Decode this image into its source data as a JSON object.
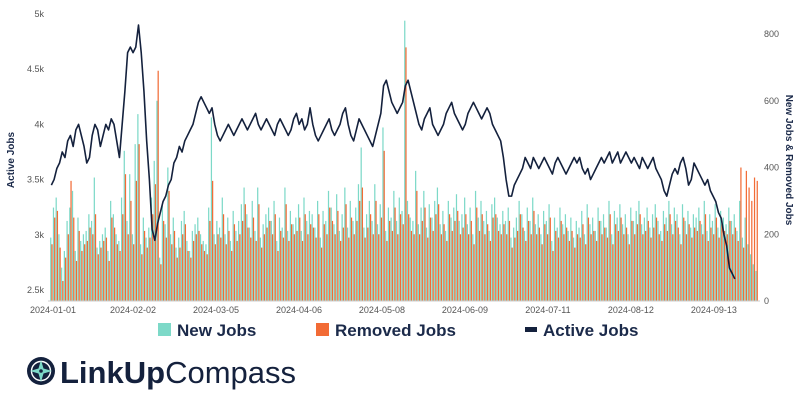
{
  "chart_data": {
    "type": "bar+line",
    "x_start": "2024-01-01",
    "x_end": "2024-09-30",
    "x_tick_labels": [
      "2024-01-01",
      "2024-02-02",
      "2024-03-05",
      "2024-04-06",
      "2024-05-08",
      "2024-06-09",
      "2024-07-11",
      "2024-08-12",
      "2024-09-13"
    ],
    "left_axis": {
      "label": "Active Jobs",
      "range": [
        2400,
        5000
      ],
      "ticks": [
        2500,
        3000,
        3500,
        4000,
        4500,
        5000
      ],
      "tick_labels": [
        "2.5k",
        "3k",
        "3.5k",
        "4k",
        "4.5k",
        "5k"
      ]
    },
    "right_axis": {
      "label": "New Jobs & Removed Jobs",
      "range": [
        0,
        860
      ],
      "ticks": [
        0,
        200,
        400,
        600,
        800
      ],
      "tick_labels": [
        "0",
        "200",
        "400",
        "600",
        "800"
      ]
    },
    "series": [
      {
        "name": "New Jobs",
        "type": "bar",
        "axis": "right",
        "color": "#7dd9c8",
        "values": [
          190,
          280,
          310,
          200,
          100,
          150,
          240,
          280,
          330,
          150,
          250,
          180,
          200,
          210,
          260,
          240,
          370,
          160,
          180,
          200,
          220,
          150,
          300,
          260,
          200,
          180,
          310,
          450,
          240,
          380,
          200,
          470,
          560,
          170,
          250,
          190,
          220,
          310,
          420,
          600,
          130,
          290,
          230,
          400,
          200,
          250,
          160,
          190,
          240,
          270,
          180,
          150,
          210,
          230,
          250,
          200,
          180,
          170,
          280,
          550,
          200,
          240,
          220,
          310,
          200,
          250,
          180,
          270,
          210,
          240,
          290,
          340,
          260,
          220,
          300,
          210,
          340,
          190,
          230,
          260,
          280,
          240,
          300,
          180,
          250,
          220,
          340,
          210,
          270,
          230,
          250,
          290,
          210,
          310,
          240,
          270,
          260,
          220,
          300,
          190,
          270,
          240,
          330,
          280,
          230,
          320,
          210,
          260,
          340,
          220,
          300,
          240,
          280,
          350,
          460,
          220,
          260,
          300,
          240,
          350,
          230,
          290,
          520,
          210,
          280,
          250,
          330,
          240,
          310,
          270,
          840,
          300,
          250,
          240,
          390,
          230,
          280,
          330,
          220,
          290,
          250,
          300,
          340,
          230,
          270,
          210,
          300,
          250,
          280,
          320,
          240,
          260,
          310,
          230,
          280,
          200,
          330,
          250,
          300,
          240,
          270,
          210,
          290,
          310,
          250,
          230,
          270,
          240,
          280,
          190,
          220,
          250,
          300,
          260,
          210,
          280,
          240,
          310,
          230,
          260,
          200,
          270,
          240,
          290,
          180,
          250,
          220,
          280,
          230,
          260,
          210,
          250,
          190,
          240,
          220,
          270,
          200,
          290,
          230,
          250,
          210,
          280,
          240,
          260,
          220,
          300,
          200,
          270,
          250,
          290,
          230,
          260,
          200,
          280,
          240,
          270,
          300,
          230,
          250,
          280,
          220,
          260,
          290,
          240,
          210,
          270,
          250,
          300,
          230,
          280,
          260,
          200,
          290,
          240,
          270,
          220,
          260,
          250,
          280,
          230,
          300,
          210,
          260,
          240,
          290,
          220,
          270,
          250,
          230,
          280,
          240,
          260,
          210,
          300,
          190,
          250,
          170,
          140,
          110,
          90
        ]
      },
      {
        "name": "Removed Jobs",
        "type": "bar",
        "axis": "right",
        "color": "#f26b35",
        "values": [
          170,
          250,
          270,
          160,
          60,
          130,
          200,
          360,
          250,
          120,
          210,
          150,
          170,
          180,
          220,
          200,
          260,
          140,
          160,
          180,
          190,
          120,
          250,
          220,
          170,
          150,
          260,
          380,
          200,
          300,
          170,
          360,
          470,
          140,
          210,
          160,
          190,
          260,
          350,
          690,
          110,
          240,
          190,
          330,
          170,
          210,
          130,
          160,
          200,
          230,
          150,
          130,
          180,
          200,
          210,
          170,
          150,
          140,
          240,
          360,
          170,
          200,
          190,
          260,
          170,
          210,
          150,
          230,
          180,
          200,
          240,
          290,
          220,
          190,
          250,
          180,
          290,
          160,
          200,
          220,
          240,
          200,
          260,
          150,
          210,
          190,
          290,
          180,
          230,
          200,
          210,
          250,
          180,
          260,
          200,
          230,
          220,
          190,
          260,
          160,
          230,
          200,
          280,
          240,
          200,
          270,
          180,
          220,
          290,
          190,
          250,
          200,
          240,
          300,
          340,
          190,
          220,
          260,
          200,
          300,
          200,
          250,
          450,
          180,
          240,
          210,
          280,
          200,
          260,
          230,
          760,
          260,
          210,
          200,
          330,
          200,
          240,
          280,
          190,
          250,
          210,
          260,
          290,
          200,
          230,
          180,
          260,
          210,
          240,
          270,
          200,
          220,
          260,
          200,
          240,
          170,
          280,
          210,
          260,
          200,
          230,
          180,
          250,
          260,
          210,
          200,
          230,
          200,
          240,
          160,
          190,
          210,
          260,
          220,
          180,
          240,
          200,
          270,
          200,
          220,
          170,
          230,
          200,
          250,
          150,
          210,
          190,
          240,
          200,
          220,
          180,
          210,
          160,
          200,
          190,
          230,
          170,
          250,
          200,
          210,
          180,
          240,
          200,
          220,
          190,
          260,
          170,
          230,
          210,
          250,
          200,
          220,
          170,
          240,
          200,
          230,
          260,
          200,
          210,
          240,
          190,
          220,
          250,
          200,
          180,
          230,
          210,
          260,
          200,
          240,
          220,
          170,
          250,
          200,
          230,
          190,
          220,
          210,
          240,
          200,
          260,
          180,
          220,
          200,
          250,
          190,
          230,
          210,
          200,
          240,
          200,
          220,
          180,
          400,
          160,
          390,
          340,
          300,
          370,
          360
        ]
      },
      {
        "name": "Active Jobs",
        "type": "line",
        "axis": "left",
        "color": "#14213d",
        "values": [
          3450,
          3500,
          3600,
          3650,
          3750,
          3700,
          3850,
          3900,
          3800,
          3950,
          4000,
          3900,
          3800,
          3650,
          3700,
          3900,
          4000,
          3950,
          3800,
          3900,
          4000,
          3950,
          4050,
          4000,
          3850,
          3700,
          4000,
          4300,
          4650,
          4700,
          4650,
          4700,
          4900,
          4650,
          4300,
          3850,
          3500,
          3050,
          2950,
          3100,
          3200,
          3300,
          3350,
          3450,
          3500,
          3650,
          3700,
          3800,
          3750,
          3850,
          3900,
          3950,
          4000,
          4100,
          4200,
          4250,
          4200,
          4150,
          4100,
          4150,
          4000,
          3900,
          3850,
          3900,
          3950,
          4000,
          3950,
          3900,
          3950,
          4000,
          4050,
          4000,
          3950,
          4000,
          4050,
          4100,
          4000,
          3950,
          4000,
          4050,
          4000,
          3950,
          3900,
          4000,
          4050,
          4000,
          3950,
          3900,
          3950,
          4050,
          4100,
          4000,
          4050,
          3950,
          4000,
          4150,
          4000,
          3900,
          3850,
          3900,
          3950,
          4000,
          4050,
          3950,
          3900,
          3950,
          4000,
          4100,
          4150,
          4000,
          3900,
          3850,
          3950,
          4050,
          4000,
          3950,
          3900,
          3850,
          3800,
          3900,
          4000,
          4100,
          4350,
          4400,
          4300,
          4200,
          4150,
          4100,
          4150,
          4200,
          4350,
          4400,
          4300,
          4200,
          4100,
          4000,
          3950,
          4050,
          4100,
          4150,
          4000,
          3950,
          3900,
          3950,
          4000,
          4100,
          4150,
          4200,
          4100,
          4050,
          4000,
          3950,
          4000,
          4100,
          4150,
          4200,
          4150,
          4100,
          4050,
          4100,
          4150,
          4100,
          4000,
          3950,
          3900,
          3850,
          3700,
          3500,
          3350,
          3350,
          3450,
          3500,
          3550,
          3600,
          3700,
          3650,
          3600,
          3700,
          3650,
          3600,
          3650,
          3700,
          3650,
          3600,
          3550,
          3650,
          3700,
          3650,
          3600,
          3550,
          3600,
          3650,
          3700,
          3650,
          3700,
          3600,
          3550,
          3600,
          3500,
          3550,
          3600,
          3650,
          3700,
          3650,
          3700,
          3750,
          3650,
          3700,
          3750,
          3650,
          3700,
          3750,
          3700,
          3650,
          3700,
          3650,
          3600,
          3700,
          3650,
          3600,
          3650,
          3700,
          3600,
          3550,
          3500,
          3400,
          3350,
          3450,
          3550,
          3600,
          3550,
          3650,
          3700,
          3600,
          3450,
          3500,
          3650,
          3600,
          3550,
          3500,
          3450,
          3500,
          3400,
          3350,
          3300,
          3200,
          3150,
          3000,
          2900,
          2700,
          2650,
          2600
        ]
      }
    ],
    "legend": {
      "placement": "bottom-center",
      "entries": [
        "New Jobs",
        "Removed Jobs",
        "Active Jobs"
      ]
    },
    "grid": false
  },
  "brand": {
    "name_bold": "LinkUp",
    "name_light": "Compass",
    "logo_icon": "compass-icon",
    "colors": {
      "navy": "#14213d",
      "teal": "#7dd9c8",
      "orange": "#f26b35"
    }
  }
}
